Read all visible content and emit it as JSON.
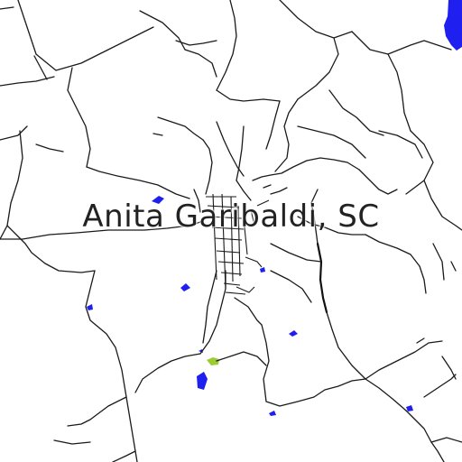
{
  "map": {
    "title": "Anita Garibaldi, SC",
    "colors": {
      "background": "#ffffff",
      "road": "#1a1a1a",
      "water": "#1f1ff0",
      "park": "#9ccc33"
    }
  }
}
